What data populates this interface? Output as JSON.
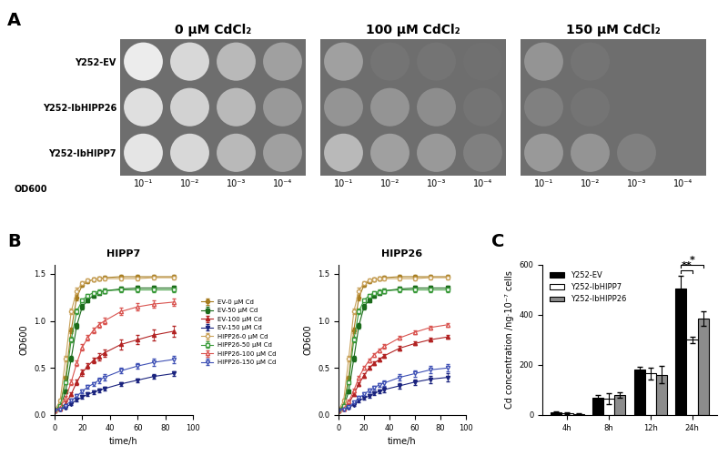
{
  "panel_a": {
    "panel_label": "A",
    "conditions": [
      "0 μM CdCl₂",
      "100 μM CdCl₂",
      "150 μM CdCl₂"
    ],
    "strains": [
      "Y252-EV",
      "Y252-IbHIPP26",
      "Y252-IbHIPP7"
    ],
    "dilution_label": "OD600",
    "dilutions": [
      "10⁻¹",
      "10⁻²",
      "10⁻³",
      "10⁻⁴"
    ],
    "growth": [
      [
        [
          1.0,
          0.85,
          0.6,
          0.4
        ],
        [
          0.9,
          0.8,
          0.6,
          0.35
        ],
        [
          0.95,
          0.85,
          0.6,
          0.4
        ]
      ],
      [
        [
          0.4,
          0.05,
          0.05,
          0.02
        ],
        [
          0.3,
          0.3,
          0.25,
          0.05
        ],
        [
          0.6,
          0.4,
          0.35,
          0.15
        ]
      ],
      [
        [
          0.3,
          0.05,
          0.0,
          0.0
        ],
        [
          0.15,
          0.05,
          0.0,
          0.0
        ],
        [
          0.35,
          0.3,
          0.15,
          0.0
        ]
      ]
    ]
  },
  "chart_data": [
    {
      "type": "line",
      "panel_label": "B",
      "title": "HIPP7",
      "x_label": "time/h",
      "y_label": "OD600",
      "x": [
        0,
        4,
        8,
        12,
        16,
        20,
        24,
        28,
        32,
        36,
        48,
        60,
        72,
        86
      ],
      "xlim": [
        0,
        100
      ],
      "xticks": [
        0,
        20,
        40,
        60,
        80,
        100
      ],
      "ylim": [
        0,
        1.6
      ],
      "yticks": [
        {
          "value": 0,
          "label": "0.0"
        },
        0.5,
        {
          "value": 1,
          "label": "1.0"
        },
        1.5
      ],
      "legend": "right",
      "series": [
        {
          "name": "EV-0 μM Cd",
          "color": "#a67c1f",
          "marker": "circle",
          "line_style": "solid",
          "values": [
            0.05,
            0.1,
            0.4,
            0.9,
            1.25,
            1.38,
            1.42,
            1.44,
            1.45,
            1.46,
            1.47,
            1.47,
            1.47,
            1.47
          ],
          "errors": [
            0.01,
            0.01,
            0.02,
            0.03,
            0.03,
            0.02,
            0.02,
            0.02,
            0.02,
            0.02,
            0.02,
            0.02,
            0.02,
            0.02
          ]
        },
        {
          "name": "EV-50 μM Cd",
          "color": "#1b6b1b",
          "marker": "square",
          "line_style": "solid",
          "values": [
            0.05,
            0.08,
            0.25,
            0.6,
            0.95,
            1.15,
            1.22,
            1.27,
            1.3,
            1.32,
            1.34,
            1.35,
            1.35,
            1.35
          ],
          "errors": [
            0.01,
            0.01,
            0.02,
            0.03,
            0.03,
            0.03,
            0.02,
            0.02,
            0.02,
            0.02,
            0.02,
            0.02,
            0.02,
            0.02
          ]
        },
        {
          "name": "EV-100 μM Cd",
          "color": "#b22222",
          "marker": "triangle",
          "line_style": "solid",
          "values": [
            0.05,
            0.07,
            0.12,
            0.22,
            0.35,
            0.45,
            0.52,
            0.58,
            0.62,
            0.66,
            0.75,
            0.8,
            0.85,
            0.89
          ],
          "errors": [
            0.01,
            0.01,
            0.02,
            0.02,
            0.03,
            0.03,
            0.03,
            0.03,
            0.04,
            0.04,
            0.05,
            0.05,
            0.06,
            0.06
          ]
        },
        {
          "name": "EV-150 μM Cd",
          "color": "#1a237e",
          "marker": "down triangle",
          "line_style": "solid",
          "values": [
            0.05,
            0.06,
            0.08,
            0.12,
            0.16,
            0.19,
            0.22,
            0.24,
            0.26,
            0.28,
            0.33,
            0.37,
            0.41,
            0.44
          ],
          "errors": [
            0.01,
            0.01,
            0.01,
            0.01,
            0.02,
            0.02,
            0.02,
            0.02,
            0.02,
            0.02,
            0.02,
            0.02,
            0.02,
            0.02
          ]
        },
        {
          "name": "HIPP26-0 μM Cd",
          "color": "#c9a25a",
          "marker": "open circle",
          "line_style": "solid",
          "values": [
            0.05,
            0.15,
            0.6,
            1.1,
            1.32,
            1.4,
            1.43,
            1.44,
            1.45,
            1.45,
            1.45,
            1.45,
            1.46,
            1.46
          ],
          "errors": [
            0.01,
            0.02,
            0.03,
            0.03,
            0.03,
            0.02,
            0.02,
            0.02,
            0.02,
            0.02,
            0.02,
            0.02,
            0.02,
            0.02
          ]
        },
        {
          "name": "HIPP26-50 μM Cd",
          "color": "#3a9a3a",
          "marker": "open square",
          "line_style": "solid",
          "values": [
            0.05,
            0.1,
            0.35,
            0.8,
            1.1,
            1.22,
            1.27,
            1.3,
            1.31,
            1.32,
            1.33,
            1.33,
            1.33,
            1.33
          ],
          "errors": [
            0.01,
            0.01,
            0.02,
            0.03,
            0.03,
            0.02,
            0.02,
            0.02,
            0.02,
            0.02,
            0.02,
            0.02,
            0.02,
            0.02
          ]
        },
        {
          "name": "HIPP26-100 μM Cd",
          "color": "#d9534f",
          "marker": "open triangle",
          "line_style": "solid",
          "values": [
            0.05,
            0.08,
            0.18,
            0.35,
            0.55,
            0.72,
            0.82,
            0.9,
            0.96,
            1.0,
            1.1,
            1.15,
            1.18,
            1.2
          ],
          "errors": [
            0.01,
            0.01,
            0.02,
            0.03,
            0.03,
            0.03,
            0.03,
            0.03,
            0.03,
            0.03,
            0.04,
            0.04,
            0.04,
            0.04
          ]
        },
        {
          "name": "HIPP26-150 μM Cd",
          "color": "#3f51b5",
          "marker": "open down triangle",
          "line_style": "solid",
          "values": [
            0.05,
            0.06,
            0.1,
            0.15,
            0.2,
            0.25,
            0.3,
            0.33,
            0.37,
            0.4,
            0.47,
            0.52,
            0.56,
            0.59
          ],
          "errors": [
            0.01,
            0.01,
            0.01,
            0.02,
            0.02,
            0.02,
            0.02,
            0.02,
            0.03,
            0.03,
            0.03,
            0.03,
            0.04,
            0.04
          ]
        }
      ]
    },
    {
      "type": "line",
      "title": "HIPP26",
      "x_label": "time/h",
      "y_label": "OD600",
      "x": [
        0,
        4,
        8,
        12,
        16,
        20,
        24,
        28,
        32,
        36,
        48,
        60,
        72,
        86
      ],
      "xlim": [
        0,
        100
      ],
      "xticks": [
        0,
        20,
        40,
        60,
        80,
        100
      ],
      "ylim": [
        0,
        1.6
      ],
      "yticks": [
        {
          "value": 0,
          "label": "0.0"
        },
        0.5,
        {
          "value": 1,
          "label": "1.0"
        },
        1.5
      ],
      "series": [
        {
          "name": "EV-0 μM Cd",
          "color": "#a67c1f",
          "marker": "circle",
          "line_style": "solid",
          "values": [
            0.05,
            0.1,
            0.4,
            0.9,
            1.25,
            1.38,
            1.42,
            1.44,
            1.45,
            1.46,
            1.47,
            1.47,
            1.47,
            1.47
          ],
          "errors": [
            0.01,
            0.01,
            0.02,
            0.03,
            0.03,
            0.02,
            0.02,
            0.02,
            0.02,
            0.02,
            0.02,
            0.02,
            0.02,
            0.02
          ]
        },
        {
          "name": "EV-50 μM Cd",
          "color": "#1b6b1b",
          "marker": "square",
          "line_style": "solid",
          "values": [
            0.05,
            0.08,
            0.25,
            0.6,
            0.95,
            1.15,
            1.22,
            1.27,
            1.3,
            1.32,
            1.34,
            1.35,
            1.35,
            1.35
          ],
          "errors": [
            0.01,
            0.01,
            0.02,
            0.03,
            0.03,
            0.03,
            0.02,
            0.02,
            0.02,
            0.02,
            0.02,
            0.02,
            0.02,
            0.02
          ]
        },
        {
          "name": "EV-100 μM Cd",
          "color": "#b22222",
          "marker": "triangle",
          "line_style": "solid",
          "values": [
            0.05,
            0.07,
            0.12,
            0.22,
            0.33,
            0.42,
            0.5,
            0.55,
            0.59,
            0.63,
            0.71,
            0.76,
            0.8,
            0.83
          ],
          "errors": [
            0.01,
            0.01,
            0.02,
            0.02,
            0.02,
            0.02,
            0.02,
            0.02,
            0.02,
            0.02,
            0.02,
            0.02,
            0.02,
            0.02
          ]
        },
        {
          "name": "EV-150 μM Cd",
          "color": "#1a237e",
          "marker": "down triangle",
          "line_style": "solid",
          "values": [
            0.05,
            0.06,
            0.08,
            0.11,
            0.15,
            0.18,
            0.2,
            0.23,
            0.25,
            0.27,
            0.31,
            0.35,
            0.38,
            0.4
          ],
          "errors": [
            0.01,
            0.01,
            0.01,
            0.01,
            0.02,
            0.02,
            0.02,
            0.02,
            0.02,
            0.03,
            0.03,
            0.03,
            0.04,
            0.04
          ]
        },
        {
          "name": "HIPP26-0 μM Cd",
          "color": "#c9a25a",
          "marker": "open circle",
          "line_style": "solid",
          "values": [
            0.05,
            0.15,
            0.6,
            1.1,
            1.32,
            1.4,
            1.43,
            1.44,
            1.45,
            1.45,
            1.45,
            1.45,
            1.46,
            1.46
          ],
          "errors": [
            0.01,
            0.02,
            0.03,
            0.03,
            0.03,
            0.02,
            0.02,
            0.02,
            0.02,
            0.02,
            0.02,
            0.02,
            0.02,
            0.02
          ]
        },
        {
          "name": "HIPP26-50 μM Cd",
          "color": "#3a9a3a",
          "marker": "open square",
          "line_style": "solid",
          "values": [
            0.05,
            0.1,
            0.35,
            0.8,
            1.1,
            1.22,
            1.27,
            1.3,
            1.31,
            1.32,
            1.33,
            1.33,
            1.33,
            1.33
          ],
          "errors": [
            0.01,
            0.01,
            0.02,
            0.03,
            0.03,
            0.02,
            0.02,
            0.02,
            0.02,
            0.02,
            0.02,
            0.02,
            0.02,
            0.02
          ]
        },
        {
          "name": "HIPP26-100 μM Cd",
          "color": "#d9534f",
          "marker": "open triangle",
          "line_style": "solid",
          "values": [
            0.05,
            0.07,
            0.14,
            0.26,
            0.4,
            0.5,
            0.58,
            0.64,
            0.69,
            0.73,
            0.82,
            0.88,
            0.93,
            0.96
          ],
          "errors": [
            0.01,
            0.01,
            0.02,
            0.02,
            0.02,
            0.02,
            0.02,
            0.02,
            0.02,
            0.02,
            0.02,
            0.02,
            0.02,
            0.02
          ]
        },
        {
          "name": "HIPP26-150 μM Cd",
          "color": "#3f51b5",
          "marker": "open down triangle",
          "line_style": "solid",
          "values": [
            0.05,
            0.06,
            0.09,
            0.13,
            0.18,
            0.22,
            0.26,
            0.29,
            0.32,
            0.34,
            0.4,
            0.44,
            0.48,
            0.5
          ],
          "errors": [
            0.01,
            0.01,
            0.01,
            0.01,
            0.02,
            0.02,
            0.02,
            0.02,
            0.02,
            0.03,
            0.03,
            0.03,
            0.04,
            0.04
          ]
        }
      ]
    },
    {
      "type": "bar",
      "panel_label": "C",
      "y_label": "Cd concentration /ng·10⁻⁷ cells",
      "categories": [
        "4h",
        "8h",
        "12h",
        "24h"
      ],
      "ylim": [
        0,
        600
      ],
      "yticks": [
        0,
        200,
        400,
        600
      ],
      "legend": "upper left",
      "series": [
        {
          "name": "Y252-EV",
          "color": "#000000",
          "values": [
            10,
            70,
            180,
            505
          ],
          "errors": [
            3,
            8,
            12,
            50
          ]
        },
        {
          "name": "Y252-IbHIPP7",
          "color": "#ffffff",
          "values": [
            8,
            65,
            165,
            300
          ],
          "errors": [
            3,
            20,
            25,
            12
          ]
        },
        {
          "name": "Y252-IbHIPP26",
          "color": "#8c8c8c",
          "values": [
            5,
            80,
            160,
            385
          ],
          "errors": [
            2,
            10,
            35,
            30
          ]
        }
      ],
      "annotations": [
        {
          "text": "**",
          "category": "24h",
          "from": "Y252-EV",
          "to": "Y252-IbHIPP7"
        },
        {
          "text": "*",
          "category": "24h",
          "from": "Y252-EV",
          "to": "Y252-IbHIPP26"
        }
      ]
    }
  ]
}
